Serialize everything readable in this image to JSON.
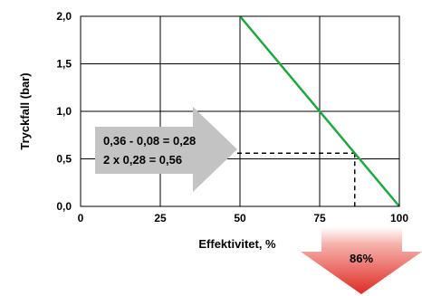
{
  "chart_data": {
    "type": "line",
    "xlabel": "Effektivitet, %",
    "ylabel": "Tryckfall (bar)",
    "xlim": [
      0,
      100
    ],
    "ylim": [
      0,
      2
    ],
    "x_ticks": [
      "0",
      "25",
      "50",
      "75",
      "100"
    ],
    "y_ticks": [
      "0,0",
      "0,5",
      "1,0",
      "1,5",
      "2,0"
    ],
    "grid": true,
    "series": [
      {
        "color": "#1aaa3c",
        "x": [
          50,
          100
        ],
        "y": [
          2.0,
          0.0
        ]
      }
    ],
    "reading": {
      "x": 86,
      "y": 0.56
    },
    "annotation": {
      "lines": [
        "0,36 - 0,08 = 0,28",
        "2 x 0,28 = 0,56"
      ],
      "color": "#c0c0c0"
    },
    "result": {
      "label": "86%",
      "color": "#e03a3a"
    }
  }
}
